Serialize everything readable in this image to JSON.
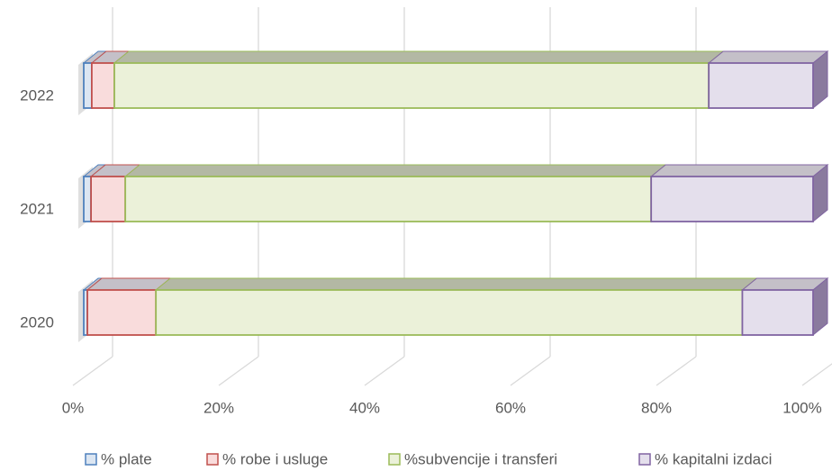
{
  "chart_data": {
    "type": "stacked_barh",
    "categories": [
      "2020",
      "2021",
      "2022"
    ],
    "series": [
      {
        "name": "% plate",
        "color": "#4f81bd",
        "fill": "#dce6f2",
        "values": [
          0.5,
          1.0,
          1.1
        ]
      },
      {
        "name": "% robe i usluge",
        "color": "#c0504d",
        "fill": "#f9dcdc",
        "values": [
          9.4,
          4.7,
          3.1
        ]
      },
      {
        "name": "%subvencije i transferi",
        "color": "#9bbb59",
        "fill": "#ebf1d9",
        "values": [
          80.4,
          72.1,
          81.5
        ]
      },
      {
        "name": "% kapitalni izdaci",
        "color": "#8064a2",
        "fill": "#e4dfec",
        "values": [
          9.7,
          22.2,
          14.3
        ]
      }
    ],
    "xlim": [
      0,
      100
    ],
    "xticks": [
      {
        "value": 0,
        "label": "0%"
      },
      {
        "value": 20,
        "label": "20%"
      },
      {
        "value": 40,
        "label": "40%"
      },
      {
        "value": 60,
        "label": "60%"
      },
      {
        "value": 80,
        "label": "80%"
      },
      {
        "value": 100,
        "label": "100%"
      }
    ],
    "grid": true,
    "legend": "bottom"
  }
}
